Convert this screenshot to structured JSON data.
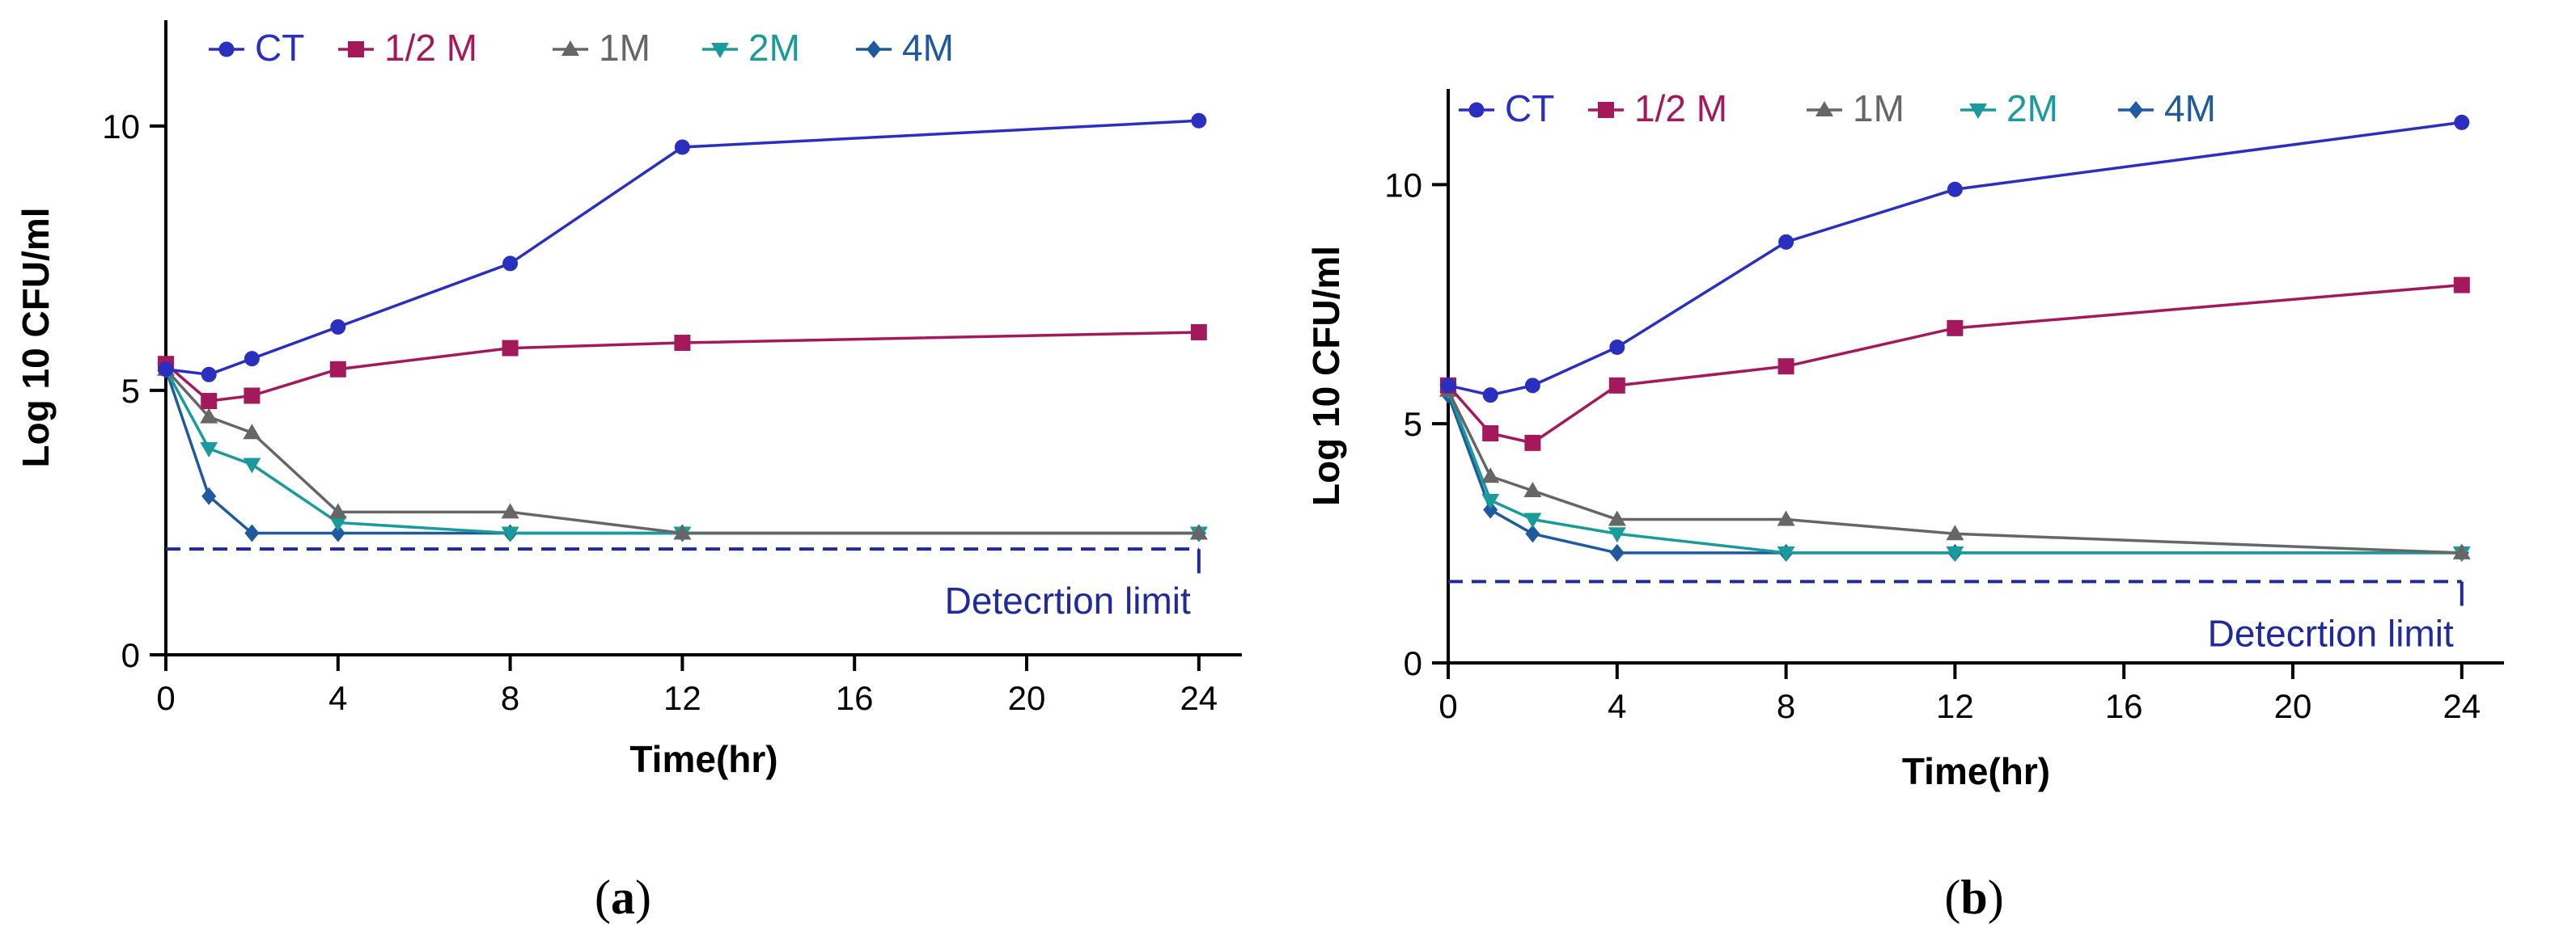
{
  "colors": {
    "CT": "#2b2fc0",
    "1/2 M": "#a3195b",
    "1M": "#666666",
    "2M": "#1a9a9a",
    "4M": "#1f5a9e",
    "limit": "#1f2a9c"
  },
  "chart_data": [
    {
      "type": "line",
      "panel_label": "a",
      "xlabel": "Time(hr)",
      "ylabel": "Log 10 CFU/ml",
      "x_ticks": [
        0,
        4,
        8,
        12,
        16,
        20,
        24
      ],
      "y_ticks": [
        0,
        5,
        10
      ],
      "xlim": [
        0,
        25
      ],
      "ylim": [
        0,
        12
      ],
      "legend_position": "top-left",
      "detection_limit": {
        "label": "Detecrtion limit",
        "value": 2.0
      },
      "x": [
        0,
        1,
        2,
        4,
        8,
        12,
        24
      ],
      "series": [
        {
          "name": "CT",
          "marker": "circle",
          "values": [
            5.4,
            5.3,
            5.6,
            6.2,
            7.4,
            9.6,
            10.1
          ]
        },
        {
          "name": "1/2 M",
          "marker": "square",
          "values": [
            5.5,
            4.8,
            4.9,
            5.4,
            5.8,
            5.9,
            6.1
          ]
        },
        {
          "name": "1M",
          "marker": "triangle-up",
          "values": [
            5.4,
            4.5,
            4.2,
            2.7,
            2.7,
            2.3,
            2.3
          ]
        },
        {
          "name": "2M",
          "marker": "triangle-down",
          "values": [
            5.4,
            3.9,
            3.6,
            2.5,
            2.3,
            2.3,
            2.3
          ]
        },
        {
          "name": "4M",
          "marker": "diamond",
          "values": [
            5.4,
            3.0,
            2.3,
            2.3,
            2.3,
            2.3,
            2.3
          ]
        }
      ]
    },
    {
      "type": "line",
      "panel_label": "b",
      "xlabel": "Time(hr)",
      "ylabel": "Log 10 CFU/ml",
      "x_ticks": [
        0,
        4,
        8,
        12,
        16,
        20,
        24
      ],
      "y_ticks": [
        0,
        5,
        10
      ],
      "xlim": [
        0,
        25
      ],
      "ylim": [
        0,
        12
      ],
      "legend_position": "top-left",
      "detection_limit": {
        "label": "Detecrtion limit",
        "value": 1.7
      },
      "x": [
        0,
        1,
        2,
        4,
        8,
        12,
        24
      ],
      "series": [
        {
          "name": "CT",
          "marker": "circle",
          "values": [
            5.8,
            5.6,
            5.8,
            6.6,
            8.8,
            9.9,
            11.3
          ]
        },
        {
          "name": "1/2 M",
          "marker": "square",
          "values": [
            5.8,
            4.8,
            4.6,
            5.8,
            6.2,
            7.0,
            7.9
          ]
        },
        {
          "name": "1M",
          "marker": "triangle-up",
          "values": [
            5.7,
            3.9,
            3.6,
            3.0,
            3.0,
            2.7,
            2.3
          ]
        },
        {
          "name": "2M",
          "marker": "triangle-down",
          "values": [
            5.7,
            3.4,
            3.0,
            2.7,
            2.3,
            2.3,
            2.3
          ]
        },
        {
          "name": "4M",
          "marker": "diamond",
          "values": [
            5.6,
            3.2,
            2.7,
            2.3,
            2.3,
            2.3,
            2.3
          ]
        }
      ]
    }
  ]
}
